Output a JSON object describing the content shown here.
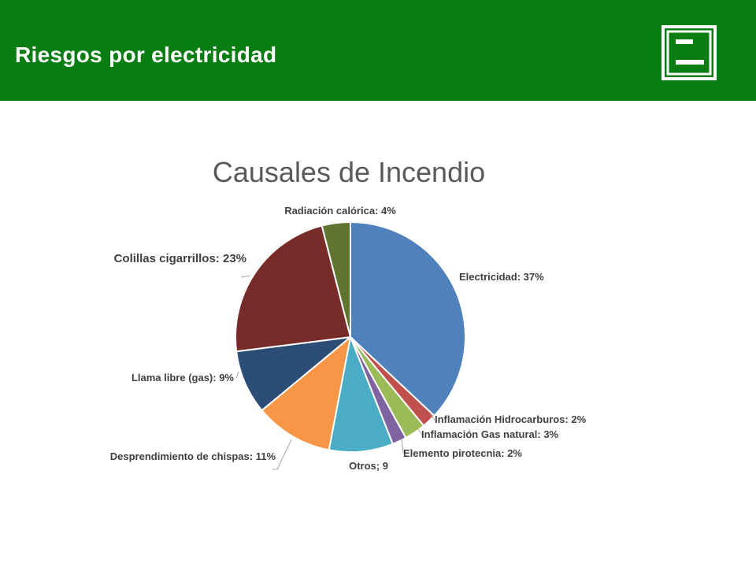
{
  "header": {
    "title": "Riesgos por electricidad",
    "logo_icon": "green-square-logo-icon",
    "bg_color": "#0a7d12"
  },
  "chart_data": {
    "type": "pie",
    "title": "Causales de Incendio",
    "slices": [
      {
        "label": "Electricidad: 37%",
        "value": 37,
        "color": "#4f81bd"
      },
      {
        "label": "Inflamación Hidrocarburos: 2%",
        "value": 2,
        "color": "#c0504d"
      },
      {
        "label": "Inflamación Gas natural: 3%",
        "value": 3,
        "color": "#9bbb59"
      },
      {
        "label": "Elemento pirotecnia: 2%",
        "value": 2,
        "color": "#8064a2"
      },
      {
        "label": "Otros; 9",
        "value": 9,
        "color": "#4bacc6"
      },
      {
        "label": "Desprendimiento de chispas: 11%",
        "value": 11,
        "color": "#f79646"
      },
      {
        "label": "Llama libre (gas): 9%",
        "value": 9,
        "color": "#2c4d75"
      },
      {
        "label": "Colillas cigarrillos: 23%",
        "value": 23,
        "color": "#772c2a"
      },
      {
        "label": "Radiación calórica: 4%",
        "value": 4,
        "color": "#5f7530"
      }
    ]
  }
}
